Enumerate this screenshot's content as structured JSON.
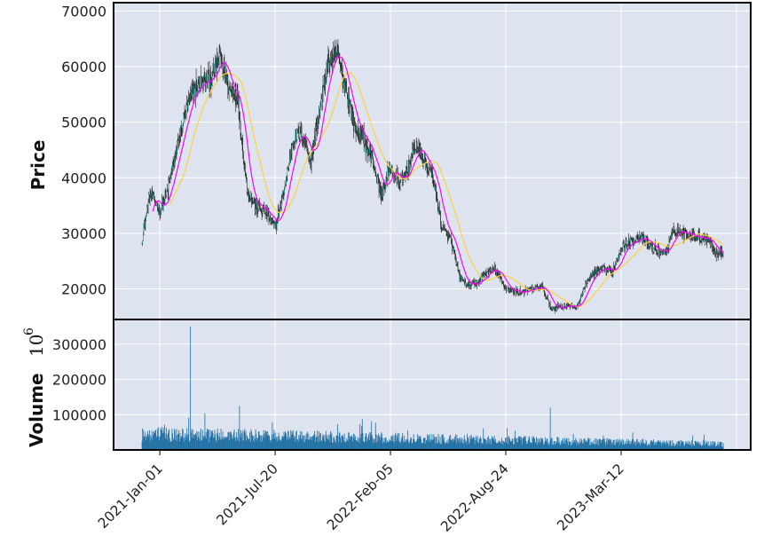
{
  "chart_data": {
    "type": "candlestick",
    "panels": [
      {
        "name": "price",
        "ylabel": "Price",
        "ylim": [
          14500,
          71500
        ],
        "yticks": [
          "20000",
          "30000",
          "40000",
          "50000",
          "60000",
          "70000"
        ],
        "series": [
          {
            "name": "close",
            "style": "candlestick",
            "color": "#1f1f1f"
          },
          {
            "name": "ma-short",
            "style": "line",
            "color": "#ff00ff"
          },
          {
            "name": "ma-long",
            "style": "line",
            "color": "#ffd23f"
          }
        ],
        "close_path": [
          [
            "2020-12-01",
            29000
          ],
          [
            "2020-12-08",
            33000
          ],
          [
            "2020-12-15",
            37000
          ],
          [
            "2020-12-22",
            36000
          ],
          [
            "2021-01-01",
            34000
          ],
          [
            "2021-01-15",
            38000
          ],
          [
            "2021-02-01",
            46000
          ],
          [
            "2021-02-15",
            52000
          ],
          [
            "2021-03-01",
            56000
          ],
          [
            "2021-03-15",
            57000
          ],
          [
            "2021-04-01",
            58000
          ],
          [
            "2021-04-15",
            62000
          ],
          [
            "2021-05-01",
            56000
          ],
          [
            "2021-05-15",
            55000
          ],
          [
            "2021-06-01",
            38000
          ],
          [
            "2021-06-15",
            35000
          ],
          [
            "2021-07-01",
            34000
          ],
          [
            "2021-07-20",
            31000
          ],
          [
            "2021-08-05",
            38000
          ],
          [
            "2021-08-20",
            47000
          ],
          [
            "2021-09-05",
            48000
          ],
          [
            "2021-09-20",
            43000
          ],
          [
            "2021-10-05",
            52000
          ],
          [
            "2021-10-20",
            61000
          ],
          [
            "2021-11-05",
            62000
          ],
          [
            "2021-11-20",
            56000
          ],
          [
            "2021-12-05",
            49000
          ],
          [
            "2021-12-20",
            47000
          ],
          [
            "2022-01-05",
            43000
          ],
          [
            "2022-01-20",
            37000
          ],
          [
            "2022-02-05",
            42000
          ],
          [
            "2022-02-20",
            39000
          ],
          [
            "2022-03-05",
            41000
          ],
          [
            "2022-03-20",
            46000
          ],
          [
            "2022-04-05",
            43000
          ],
          [
            "2022-04-20",
            40000
          ],
          [
            "2022-05-05",
            31000
          ],
          [
            "2022-05-20",
            29000
          ],
          [
            "2022-06-05",
            22000
          ],
          [
            "2022-06-20",
            20500
          ],
          [
            "2022-07-05",
            21000
          ],
          [
            "2022-07-20",
            23000
          ],
          [
            "2022-08-05",
            23500
          ],
          [
            "2022-08-24",
            20000
          ],
          [
            "2022-09-10",
            19500
          ],
          [
            "2022-09-25",
            19500
          ],
          [
            "2022-10-10",
            20000
          ],
          [
            "2022-10-25",
            20500
          ],
          [
            "2022-11-10",
            16500
          ],
          [
            "2022-11-25",
            16800
          ],
          [
            "2022-12-10",
            17000
          ],
          [
            "2022-12-25",
            16700
          ],
          [
            "2023-01-10",
            21000
          ],
          [
            "2023-01-25",
            23000
          ],
          [
            "2023-02-10",
            23500
          ],
          [
            "2023-02-25",
            23000
          ],
          [
            "2023-03-12",
            27500
          ],
          [
            "2023-03-27",
            28300
          ],
          [
            "2023-04-12",
            29500
          ],
          [
            "2023-04-27",
            28000
          ],
          [
            "2023-05-12",
            27000
          ],
          [
            "2023-05-27",
            26500
          ],
          [
            "2023-06-12",
            30500
          ],
          [
            "2023-06-27",
            30200
          ],
          [
            "2023-07-12",
            29800
          ],
          [
            "2023-07-27",
            29200
          ],
          [
            "2023-08-10",
            29300
          ],
          [
            "2023-08-22",
            26500
          ],
          [
            "2023-09-05",
            26500
          ]
        ]
      },
      {
        "name": "volume",
        "ylabel": "Volume",
        "ylabel_multiplier": "10",
        "ylabel_exponent": "6",
        "ylim": [
          0,
          370000
        ],
        "yticks": [
          "100000",
          "200000",
          "300000"
        ],
        "bar_color": "#1f6fa3",
        "notable": [
          [
            "2021-02-23",
            350000
          ],
          [
            "2022-11-09",
            120000
          ],
          [
            "2021-05-19",
            125000
          ]
        ]
      }
    ],
    "xlabels": [
      "2021-Jan-01",
      "2021-Jul-20",
      "2022-Feb-05",
      "2022-Aug-24",
      "2023-Mar-12"
    ],
    "x_start": "2020-12-01",
    "x_end": "2023-09-05",
    "grid": true,
    "background": "#dde3ef",
    "body_up_color": "#20b2aa",
    "body_down_color": "#1f1f1f"
  }
}
